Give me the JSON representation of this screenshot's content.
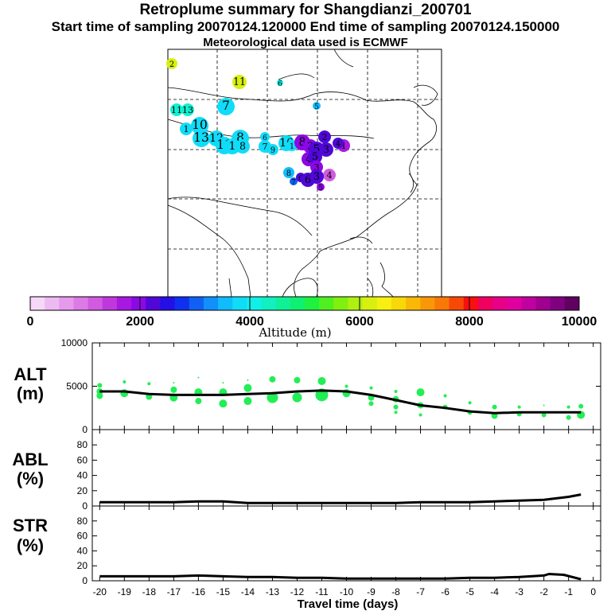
{
  "header": {
    "title": "Retroplume summary for Shangdianzi_200701",
    "line2": "Start time of sampling 20070124.120000     End time of sampling 20070124.150000",
    "line3": "Meteorological data used is ECMWF"
  },
  "colors": {
    "marker": "#22ee55",
    "line": "#000000",
    "colorbar": [
      "#f6d8f8",
      "#eebaf2",
      "#e69aec",
      "#dc7ae6",
      "#d05ae0",
      "#c038dc",
      "#a818e0",
      "#8c08e4",
      "#5008d8",
      "#2410e4",
      "#1030f0",
      "#1060f4",
      "#1090f8",
      "#10bcfc",
      "#10dcf8",
      "#10f0e8",
      "#10f0c0",
      "#10f098",
      "#10f070",
      "#20f040",
      "#50f020",
      "#80f010",
      "#b0f010",
      "#d8f010",
      "#f8f010",
      "#f8d808",
      "#f8b808",
      "#f89808",
      "#f87808",
      "#f84808",
      "#f81010",
      "#f00060",
      "#e80088",
      "#e000a0",
      "#c000a0",
      "#a00090",
      "#800080",
      "#600060"
    ]
  },
  "map": {
    "labels": [
      {
        "t": "2",
        "x": 216,
        "y": 80,
        "c": "#d8f010",
        "r": 7
      },
      {
        "t": "11",
        "x": 301,
        "y": 103,
        "c": "#d8f010",
        "r": 9
      },
      {
        "t": "6",
        "x": 352,
        "y": 104,
        "c": "#10f0e8",
        "r": 4
      },
      {
        "t": "5",
        "x": 398,
        "y": 133,
        "c": "#10bcfc",
        "r": 5
      },
      {
        "t": "7",
        "x": 284,
        "y": 134,
        "c": "#10dcf8",
        "r": 11
      },
      {
        "t": "11",
        "x": 222,
        "y": 138,
        "c": "#10f0d0",
        "r": 8
      },
      {
        "t": "13",
        "x": 236,
        "y": 138,
        "c": "#10f0d0",
        "r": 8
      },
      {
        "t": "10",
        "x": 251,
        "y": 158,
        "c": "#10dcf8",
        "r": 11
      },
      {
        "t": "1",
        "x": 234,
        "y": 162,
        "c": "#10dcf8",
        "r": 8
      },
      {
        "t": "13",
        "x": 253,
        "y": 174,
        "c": "#10dcf8",
        "r": 11
      },
      {
        "t": "12",
        "x": 272,
        "y": 174,
        "c": "#10dcf8",
        "r": 10
      },
      {
        "t": "8",
        "x": 302,
        "y": 174,
        "c": "#10dcf8",
        "r": 11
      },
      {
        "t": "11",
        "x": 282,
        "y": 183,
        "c": "#10dcf8",
        "r": 11
      },
      {
        "t": "1",
        "x": 292,
        "y": 184,
        "c": "#10dcf8",
        "r": 10
      },
      {
        "t": "8",
        "x": 305,
        "y": 184,
        "c": "#10dcf8",
        "r": 9
      },
      {
        "t": "16",
        "x": 360,
        "y": 180,
        "c": "#10dcf8",
        "r": 10
      },
      {
        "t": "6",
        "x": 333,
        "y": 172,
        "c": "#10dcf8",
        "r": 6
      },
      {
        "t": "7",
        "x": 333,
        "y": 184,
        "c": "#10dcf8",
        "r": 8
      },
      {
        "t": "9",
        "x": 343,
        "y": 188,
        "c": "#10dcf8",
        "r": 7
      },
      {
        "t": "1",
        "x": 367,
        "y": 183,
        "c": "#10dcf8",
        "r": 7
      },
      {
        "t": "8",
        "x": 380,
        "y": 179,
        "c": "#8c08e4",
        "r": 10
      },
      {
        "t": "3",
        "x": 390,
        "y": 184,
        "c": "#8c08e4",
        "r": 9
      },
      {
        "t": "2",
        "x": 408,
        "y": 172,
        "c": "#5008d8",
        "r": 8
      },
      {
        "t": "3",
        "x": 410,
        "y": 188,
        "c": "#5008d8",
        "r": 9
      },
      {
        "t": "5",
        "x": 398,
        "y": 188,
        "c": "#5008d8",
        "r": 10
      },
      {
        "t": "1",
        "x": 432,
        "y": 183,
        "c": "#a818e0",
        "r": 8
      },
      {
        "t": "4",
        "x": 425,
        "y": 180,
        "c": "#5008d8",
        "r": 7
      },
      {
        "t": "4",
        "x": 388,
        "y": 200,
        "c": "#8c08e4",
        "r": 9
      },
      {
        "t": "5",
        "x": 396,
        "y": 197,
        "c": "#5008d8",
        "r": 9
      },
      {
        "t": "3",
        "x": 398,
        "y": 210,
        "c": "#8c08e4",
        "r": 8
      },
      {
        "t": "4",
        "x": 414,
        "y": 220,
        "c": "#d05ae0",
        "r": 8
      },
      {
        "t": "8",
        "x": 363,
        "y": 217,
        "c": "#10bcfc",
        "r": 7
      },
      {
        "t": "7",
        "x": 369,
        "y": 228,
        "c": "#1060f4",
        "r": 5
      },
      {
        "t": "6",
        "x": 378,
        "y": 223,
        "c": "#5008d8",
        "r": 6
      },
      {
        "t": "6",
        "x": 387,
        "y": 226,
        "c": "#5008d8",
        "r": 9
      },
      {
        "t": "3",
        "x": 398,
        "y": 222,
        "c": "#5008d8",
        "r": 9
      },
      {
        "t": "5",
        "x": 403,
        "y": 235,
        "c": "#8c08e4",
        "r": 5
      }
    ]
  },
  "colorbar": {
    "ticks": [
      "0",
      "2000",
      "4000",
      "6000",
      "8000",
      "10000"
    ],
    "label": "Altitude (m)"
  },
  "panels": {
    "alt": {
      "line1": "ALT",
      "line2": "(m)"
    },
    "abl": {
      "line1": "ABL",
      "line2": "(%)"
    },
    "str": {
      "line1": "STR",
      "line2": "(%)"
    }
  },
  "chart_data": [
    {
      "type": "line",
      "title": "ALT (m)",
      "ylabel": "ALT (m)",
      "ylim": [
        0,
        10000
      ],
      "yticks": [
        "10000",
        "5000",
        "0"
      ],
      "xlim": [
        -20.3,
        0.3
      ],
      "x": [
        -20,
        -19,
        -18,
        -17,
        -16,
        -15,
        -14,
        -13,
        -12,
        -11,
        -10,
        -9,
        -8,
        -7,
        -6,
        -5,
        -4,
        -3,
        -2,
        -1,
        -0.5
      ],
      "values": [
        4400,
        4400,
        4100,
        4000,
        4000,
        4000,
        4100,
        4200,
        4400,
        4500,
        4400,
        4000,
        3400,
        2800,
        2500,
        2100,
        1900,
        2000,
        2000,
        2000,
        2000
      ],
      "markers": [
        {
          "x": -20,
          "y": 5100,
          "s": 3
        },
        {
          "x": -20,
          "y": 4400,
          "s": 4
        },
        {
          "x": -20,
          "y": 3900,
          "s": 4
        },
        {
          "x": -19,
          "y": 5500,
          "s": 2
        },
        {
          "x": -19,
          "y": 4200,
          "s": 5
        },
        {
          "x": -18,
          "y": 5300,
          "s": 2
        },
        {
          "x": -18,
          "y": 3800,
          "s": 4
        },
        {
          "x": -17,
          "y": 5400,
          "s": 1
        },
        {
          "x": -17,
          "y": 4600,
          "s": 4
        },
        {
          "x": -17,
          "y": 3700,
          "s": 5
        },
        {
          "x": -16,
          "y": 6000,
          "s": 1
        },
        {
          "x": -16,
          "y": 4300,
          "s": 5
        },
        {
          "x": -16,
          "y": 3300,
          "s": 4
        },
        {
          "x": -15,
          "y": 5400,
          "s": 1
        },
        {
          "x": -15,
          "y": 4300,
          "s": 5
        },
        {
          "x": -15,
          "y": 3000,
          "s": 5
        },
        {
          "x": -14,
          "y": 5700,
          "s": 1
        },
        {
          "x": -14,
          "y": 4800,
          "s": 5
        },
        {
          "x": -14,
          "y": 3300,
          "s": 5
        },
        {
          "x": -13,
          "y": 5800,
          "s": 4
        },
        {
          "x": -13,
          "y": 3700,
          "s": 7
        },
        {
          "x": -12,
          "y": 5700,
          "s": 4
        },
        {
          "x": -12,
          "y": 3700,
          "s": 6
        },
        {
          "x": -11,
          "y": 5600,
          "s": 5
        },
        {
          "x": -11,
          "y": 4000,
          "s": 8
        },
        {
          "x": -10,
          "y": 5000,
          "s": 2
        },
        {
          "x": -10,
          "y": 4200,
          "s": 5
        },
        {
          "x": -9,
          "y": 4800,
          "s": 2
        },
        {
          "x": -9,
          "y": 3700,
          "s": 4
        },
        {
          "x": -9,
          "y": 3000,
          "s": 3
        },
        {
          "x": -8,
          "y": 4400,
          "s": 2
        },
        {
          "x": -8,
          "y": 3500,
          "s": 4
        },
        {
          "x": -8,
          "y": 2600,
          "s": 3
        },
        {
          "x": -8,
          "y": 2000,
          "s": 2
        },
        {
          "x": -7,
          "y": 4300,
          "s": 5
        },
        {
          "x": -7,
          "y": 2800,
          "s": 4
        },
        {
          "x": -7,
          "y": 1700,
          "s": 2
        },
        {
          "x": -6,
          "y": 3900,
          "s": 2
        },
        {
          "x": -6,
          "y": 2600,
          "s": 3
        },
        {
          "x": -5,
          "y": 3100,
          "s": 2
        },
        {
          "x": -5,
          "y": 2000,
          "s": 3
        },
        {
          "x": -4,
          "y": 2600,
          "s": 3
        },
        {
          "x": -4,
          "y": 1600,
          "s": 4
        },
        {
          "x": -3,
          "y": 2600,
          "s": 2
        },
        {
          "x": -3,
          "y": 1800,
          "s": 3
        },
        {
          "x": -2,
          "y": 2800,
          "s": 1
        },
        {
          "x": -2,
          "y": 1700,
          "s": 3
        },
        {
          "x": -1,
          "y": 2600,
          "s": 2
        },
        {
          "x": -1,
          "y": 1400,
          "s": 3
        },
        {
          "x": -0.5,
          "y": 2700,
          "s": 3
        },
        {
          "x": -0.5,
          "y": 1700,
          "s": 5
        }
      ]
    },
    {
      "type": "line",
      "title": "ABL (%)",
      "ylabel": "ABL (%)",
      "ylim": [
        0,
        100
      ],
      "yticks": [
        "80",
        "60",
        "40",
        "20",
        "0"
      ],
      "xlim": [
        -20.3,
        0.3
      ],
      "x": [
        -20,
        -19,
        -18,
        -17,
        -16,
        -15,
        -14,
        -13,
        -12,
        -11,
        -10,
        -9,
        -8,
        -7,
        -6,
        -5,
        -4,
        -3,
        -2,
        -1,
        -0.5
      ],
      "values": [
        5,
        5,
        5,
        5,
        6,
        6,
        4,
        4,
        4,
        4,
        4,
        4,
        4,
        5,
        5,
        5,
        6,
        7,
        8,
        12,
        15
      ]
    },
    {
      "type": "line",
      "title": "STR (%)",
      "ylabel": "STR (%)",
      "ylim": [
        0,
        100
      ],
      "yticks": [
        "80",
        "60",
        "40",
        "20",
        "0"
      ],
      "xlim": [
        -20.3,
        0.3
      ],
      "xlabel": "Travel time (days)",
      "xticks": [
        "-20",
        "-19",
        "-18",
        "-17",
        "-16",
        "-15",
        "-14",
        "-13",
        "-12",
        "-11",
        "-10",
        "-9",
        "-8",
        "-7",
        "-6",
        "-5",
        "-4",
        "-3",
        "-2",
        "-1",
        "0"
      ],
      "x": [
        -20,
        -19,
        -18,
        -17,
        -16,
        -15,
        -14,
        -13,
        -12,
        -11,
        -10,
        -9,
        -8,
        -7,
        -6,
        -5,
        -4,
        -3,
        -2,
        -1.8,
        -1.2,
        -0.5
      ],
      "values": [
        6,
        6,
        6,
        6,
        7,
        6,
        5,
        5,
        4,
        4,
        3,
        3,
        3,
        3,
        3,
        4,
        4,
        5,
        7,
        9,
        8,
        2
      ]
    }
  ]
}
